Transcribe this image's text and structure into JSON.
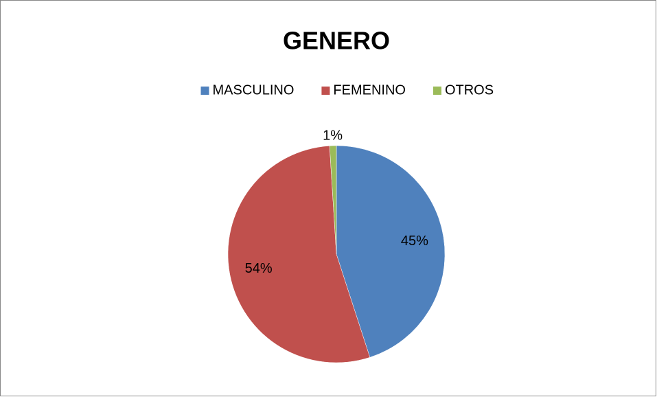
{
  "chart_data": {
    "type": "pie",
    "title": "GENERO",
    "categories": [
      "MASCULINO",
      "FEMENINO",
      "OTROS"
    ],
    "values": [
      45,
      54,
      1
    ],
    "value_labels": [
      "45%",
      "54%",
      "1%"
    ],
    "colors": [
      "#4f81bd",
      "#c0504d",
      "#9bbb59"
    ],
    "legend": "top"
  }
}
